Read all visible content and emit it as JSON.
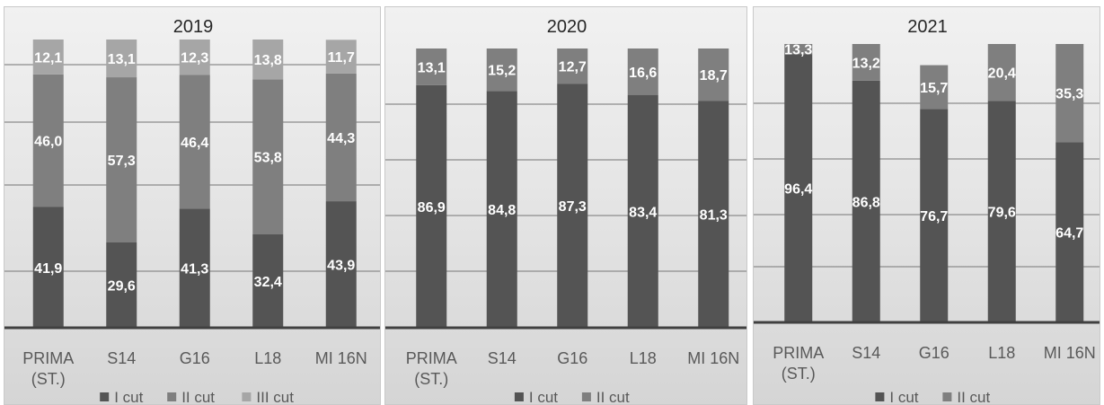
{
  "colors": {
    "I cut": "#545454",
    "II cut": "#7f7f7f",
    "III cut": "#a6a6a6",
    "gridline": "#8c8c8c",
    "axis": "#404040",
    "value_label": "#ffffff",
    "text": "#595959",
    "title": "#262626"
  },
  "chart_data": [
    {
      "type": "bar",
      "stacked": true,
      "title": "2019",
      "categories": [
        "PRIMA (ST.)",
        "S14",
        "G16",
        "L18",
        "MI 16N"
      ],
      "series": [
        {
          "name": "I cut",
          "values": [
            41.9,
            29.6,
            41.3,
            32.4,
            43.9
          ],
          "labels": [
            "41,9",
            "29,6",
            "41,3",
            "32,4",
            "43,9"
          ]
        },
        {
          "name": "II cut",
          "values": [
            46.0,
            57.3,
            46.4,
            53.8,
            44.3
          ],
          "labels": [
            "46,0",
            "57,3",
            "46,4",
            "53,8",
            "44,3"
          ]
        },
        {
          "name": "III cut",
          "values": [
            12.1,
            13.1,
            12.3,
            13.8,
            11.7
          ],
          "labels": [
            "12,1",
            "13,1",
            "12,3",
            "13,8",
            "11,7"
          ]
        }
      ],
      "legend": "bottom",
      "grid": true
    },
    {
      "type": "bar",
      "stacked": true,
      "title": "2020",
      "categories": [
        "PRIMA (ST.)",
        "S14",
        "G16",
        "L18",
        "MI 16N"
      ],
      "series": [
        {
          "name": "I cut",
          "values": [
            86.9,
            84.8,
            87.3,
            83.4,
            81.3
          ],
          "labels": [
            "86,9",
            "84,8",
            "87,3",
            "83,4",
            "81,3"
          ]
        },
        {
          "name": "II cut",
          "values": [
            13.1,
            15.2,
            12.7,
            16.6,
            18.7
          ],
          "labels": [
            "13,1",
            "15,2",
            "12,7",
            "16,6",
            "18,7"
          ]
        }
      ],
      "legend": "bottom",
      "grid": true
    },
    {
      "type": "bar",
      "stacked": true,
      "title": "2021",
      "categories": [
        "PRIMA (ST.)",
        "S14",
        "G16",
        "L18",
        "MI 16N"
      ],
      "series": [
        {
          "name": "I cut",
          "values": [
            96.4,
            86.8,
            76.7,
            79.6,
            64.7
          ],
          "labels": [
            "96,4",
            "86,8",
            "76,7",
            "79,6",
            "64,7"
          ]
        },
        {
          "name": "II cut",
          "values": [
            13.3,
            13.2,
            15.7,
            20.4,
            35.3
          ],
          "labels": [
            "13,3",
            "13,2",
            "15,7",
            "20,4",
            "35,3"
          ]
        }
      ],
      "legend": "bottom",
      "grid": true
    }
  ]
}
